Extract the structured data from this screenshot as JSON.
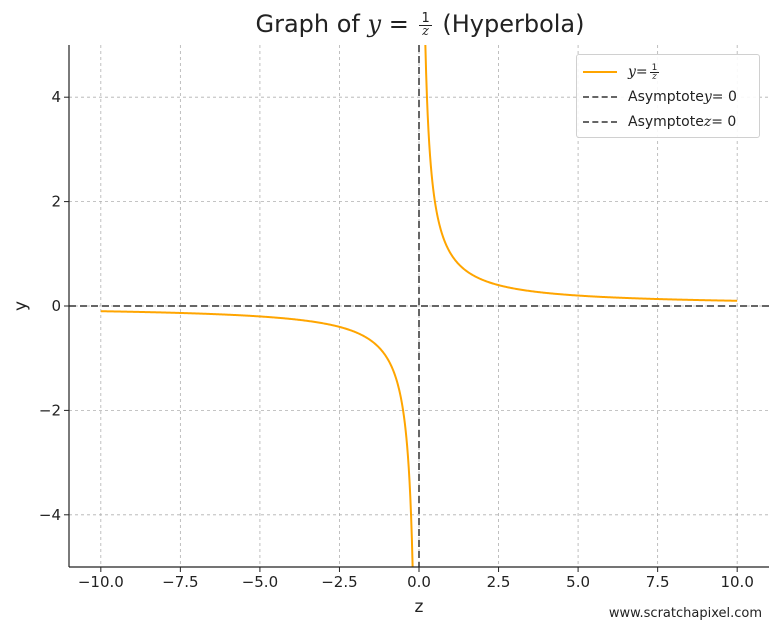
{
  "chart_data": {
    "type": "line",
    "title_prefix": "Graph of ",
    "title_var": "y",
    "title_eq": " = ",
    "title_num": "1",
    "title_den": "z",
    "title_suffix": " (Hyperbola)",
    "xlabel": "z",
    "ylabel": "y",
    "xlim": [
      -11,
      11
    ],
    "ylim": [
      -5,
      5
    ],
    "xticks": [
      -10.0,
      -7.5,
      -5.0,
      -2.5,
      0.0,
      2.5,
      5.0,
      7.5,
      10.0
    ],
    "xtick_labels": [
      "−10.0",
      "−7.5",
      "−5.0",
      "−2.5",
      "0.0",
      "2.5",
      "5.0",
      "7.5",
      "10.0"
    ],
    "yticks": [
      -4,
      -2,
      0,
      2,
      4
    ],
    "ytick_labels": [
      "−4",
      "−2",
      "0",
      "2",
      "4"
    ],
    "grid": true,
    "legend_position": "top-right",
    "series": [
      {
        "name": "y = 1/z",
        "legend_var": "y",
        "legend_eq": " = ",
        "legend_num": "1",
        "legend_den": "z",
        "color": "#ffa500",
        "style": "solid",
        "function": "reciprocal",
        "x": [
          -10.0,
          -7.5,
          -5.0,
          -2.5,
          -1.0,
          -0.5,
          -0.25,
          -0.2,
          0.2,
          0.25,
          0.5,
          1.0,
          2.5,
          5.0,
          7.5,
          10.0
        ],
        "y": [
          -0.1,
          -0.133,
          -0.2,
          -0.4,
          -1.0,
          -2.0,
          -4.0,
          -5.0,
          5.0,
          4.0,
          2.0,
          1.0,
          0.4,
          0.2,
          0.133,
          0.1
        ]
      },
      {
        "name": "Asymptote y = 0",
        "legend_text": "Asymptote ",
        "legend_var": "y",
        "legend_eq": " = 0",
        "color": "#666666",
        "style": "dashed",
        "function": "horizontal",
        "value": 0
      },
      {
        "name": "Asymptote z = 0",
        "legend_text": "Asymptote ",
        "legend_var": "z",
        "legend_eq": " = 0",
        "color": "#666666",
        "style": "dashed",
        "function": "vertical",
        "value": 0
      }
    ]
  },
  "watermark": "www.scratchapixel.com"
}
